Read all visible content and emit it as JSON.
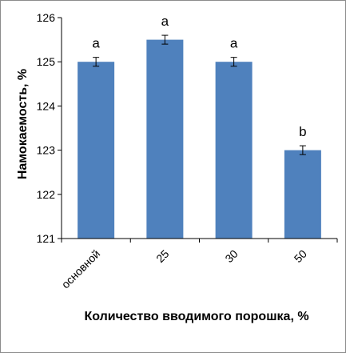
{
  "chart_data": {
    "type": "bar",
    "categories": [
      "основной",
      "25",
      "30",
      "50"
    ],
    "values": [
      125.0,
      125.5,
      125.0,
      123.0
    ],
    "errors": [
      0.1,
      0.1,
      0.1,
      0.1
    ],
    "significance_letters": [
      "a",
      "a",
      "a",
      "b"
    ],
    "xlabel": "Количество вводимого порошка, %",
    "ylabel": "Намокаемость, %",
    "ylim": [
      121,
      126
    ],
    "yticks": [
      "121",
      "122",
      "123",
      "124",
      "125",
      "126"
    ],
    "grid": false,
    "bar_color": "#4f81bd"
  }
}
